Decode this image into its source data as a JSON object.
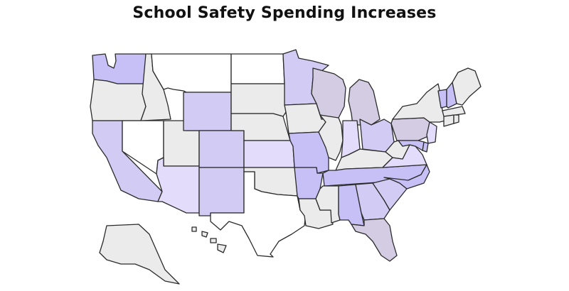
{
  "title": "School Safety Spending Increases",
  "palette": {
    "none": "#ffffff",
    "no_data": "#ebebeb",
    "low": "#e3dcfb",
    "medium": "#d2cbf3",
    "high": "#c7c0f7",
    "southeast": "#d4cce3",
    "border": "#2b2b2b"
  },
  "states": [
    {
      "id": "WA",
      "level": "high"
    },
    {
      "id": "OR",
      "level": "no_data"
    },
    {
      "id": "CA",
      "level": "medium"
    },
    {
      "id": "ID",
      "level": "no_data"
    },
    {
      "id": "NV",
      "level": "none"
    },
    {
      "id": "UT",
      "level": "no_data"
    },
    {
      "id": "AZ",
      "level": "low"
    },
    {
      "id": "MT",
      "level": "none"
    },
    {
      "id": "WY",
      "level": "medium"
    },
    {
      "id": "CO",
      "level": "medium"
    },
    {
      "id": "NM",
      "level": "medium"
    },
    {
      "id": "ND",
      "level": "none"
    },
    {
      "id": "SD",
      "level": "no_data"
    },
    {
      "id": "NE",
      "level": "no_data"
    },
    {
      "id": "KS",
      "level": "low"
    },
    {
      "id": "OK",
      "level": "no_data"
    },
    {
      "id": "TX",
      "level": "none"
    },
    {
      "id": "MN",
      "level": "medium"
    },
    {
      "id": "IA",
      "level": "no_data"
    },
    {
      "id": "MO",
      "level": "high"
    },
    {
      "id": "AR",
      "level": "high"
    },
    {
      "id": "LA",
      "level": "no_data"
    },
    {
      "id": "WI",
      "level": "southeast"
    },
    {
      "id": "IL",
      "level": "no_data"
    },
    {
      "id": "MI",
      "level": "southeast"
    },
    {
      "id": "IN",
      "level": "low"
    },
    {
      "id": "OH",
      "level": "medium"
    },
    {
      "id": "KY",
      "level": "no_data"
    },
    {
      "id": "TN",
      "level": "high"
    },
    {
      "id": "MS",
      "level": "no_data"
    },
    {
      "id": "AL",
      "level": "high"
    },
    {
      "id": "GA",
      "level": "medium"
    },
    {
      "id": "FL",
      "level": "southeast"
    },
    {
      "id": "SC",
      "level": "medium"
    },
    {
      "id": "NC",
      "level": "high"
    },
    {
      "id": "VA",
      "level": "low"
    },
    {
      "id": "WV",
      "level": "no_data"
    },
    {
      "id": "PA",
      "level": "southeast"
    },
    {
      "id": "NY",
      "level": "no_data"
    },
    {
      "id": "VT",
      "level": "high"
    },
    {
      "id": "NH",
      "level": "high"
    },
    {
      "id": "ME",
      "level": "no_data"
    },
    {
      "id": "MA",
      "level": "no_data"
    },
    {
      "id": "CT",
      "level": "no_data"
    },
    {
      "id": "RI",
      "level": "no_data"
    },
    {
      "id": "NJ",
      "level": "low"
    },
    {
      "id": "DE",
      "level": "high"
    },
    {
      "id": "MD",
      "level": "high"
    },
    {
      "id": "AK",
      "level": "no_data"
    },
    {
      "id": "HI",
      "level": "no_data"
    }
  ]
}
